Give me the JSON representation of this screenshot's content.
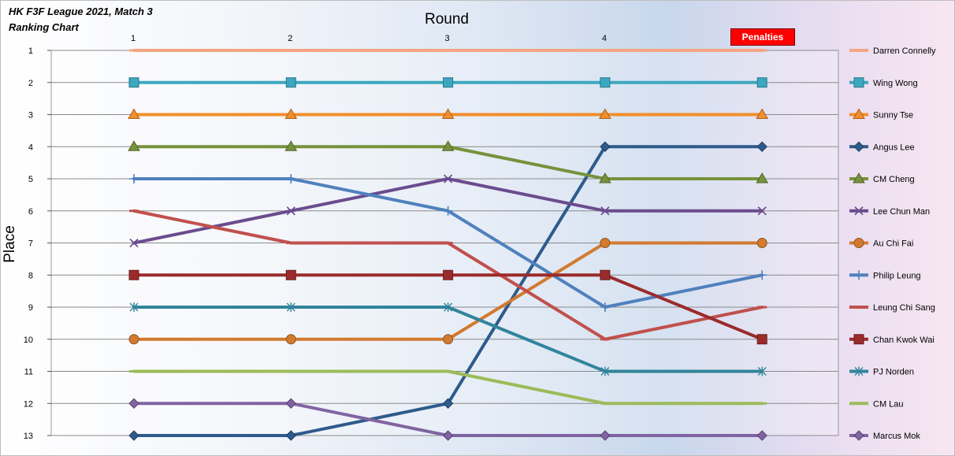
{
  "chart_data": {
    "type": "line",
    "title": "HK F3F League 2021, Match 3",
    "subtitle": "Ranking Chart",
    "xlabel": "Round",
    "ylabel": "Place",
    "x": [
      "1",
      "2",
      "3",
      "4",
      "Penalties"
    ],
    "ylim": [
      13,
      1
    ],
    "y_inverted": true,
    "y_ticks": [
      "1",
      "2",
      "3",
      "4",
      "5",
      "6",
      "7",
      "8",
      "9",
      "10",
      "11",
      "12",
      "13"
    ],
    "grid": true,
    "legend_position": "right",
    "series": [
      {
        "name": "Darren Connelly",
        "marker": "dash",
        "color": "#f4a582",
        "values": [
          1,
          1,
          1,
          1,
          1
        ]
      },
      {
        "name": "Wing Wong",
        "marker": "square",
        "color": "#3ca8c0",
        "values": [
          2,
          2,
          2,
          2,
          2
        ]
      },
      {
        "name": "Sunny Tse",
        "marker": "triangle",
        "color": "#f28e2b",
        "values": [
          3,
          3,
          3,
          3,
          3
        ]
      },
      {
        "name": "Angus Lee",
        "marker": "diamond",
        "color": "#2e5b8c",
        "values": [
          13,
          13,
          12,
          4,
          4
        ]
      },
      {
        "name": "CM Cheng",
        "marker": "triangle",
        "color": "#76923c",
        "values": [
          4,
          4,
          4,
          5,
          5
        ]
      },
      {
        "name": "Lee Chun Man",
        "marker": "x",
        "color": "#6b4c8e",
        "values": [
          7,
          6,
          5,
          6,
          6
        ]
      },
      {
        "name": "Au Chi Fai",
        "marker": "circle",
        "color": "#d17a30",
        "values": [
          10,
          10,
          10,
          7,
          7
        ]
      },
      {
        "name": "Philip Leung",
        "marker": "plus",
        "color": "#4f81bd",
        "values": [
          5,
          5,
          6,
          9,
          8
        ]
      },
      {
        "name": "Leung Chi Sang",
        "marker": "dash",
        "color": "#c0504d",
        "values": [
          6,
          7,
          7,
          10,
          9
        ]
      },
      {
        "name": "Chan Kwok Wai",
        "marker": "square",
        "color": "#9b2b2b",
        "values": [
          8,
          8,
          8,
          8,
          10
        ]
      },
      {
        "name": "PJ Norden",
        "marker": "asterisk",
        "color": "#31849b",
        "values": [
          9,
          9,
          9,
          11,
          11
        ]
      },
      {
        "name": "CM Lau",
        "marker": "dash",
        "color": "#9bbb59",
        "values": [
          11,
          11,
          11,
          12,
          12
        ]
      },
      {
        "name": "Marcus Mok",
        "marker": "diamond",
        "color": "#8064a2",
        "values": [
          12,
          12,
          13,
          13,
          13
        ]
      }
    ]
  },
  "colors": {
    "penalties_badge": "#ff0000",
    "gridline": "#8a8a8a"
  }
}
